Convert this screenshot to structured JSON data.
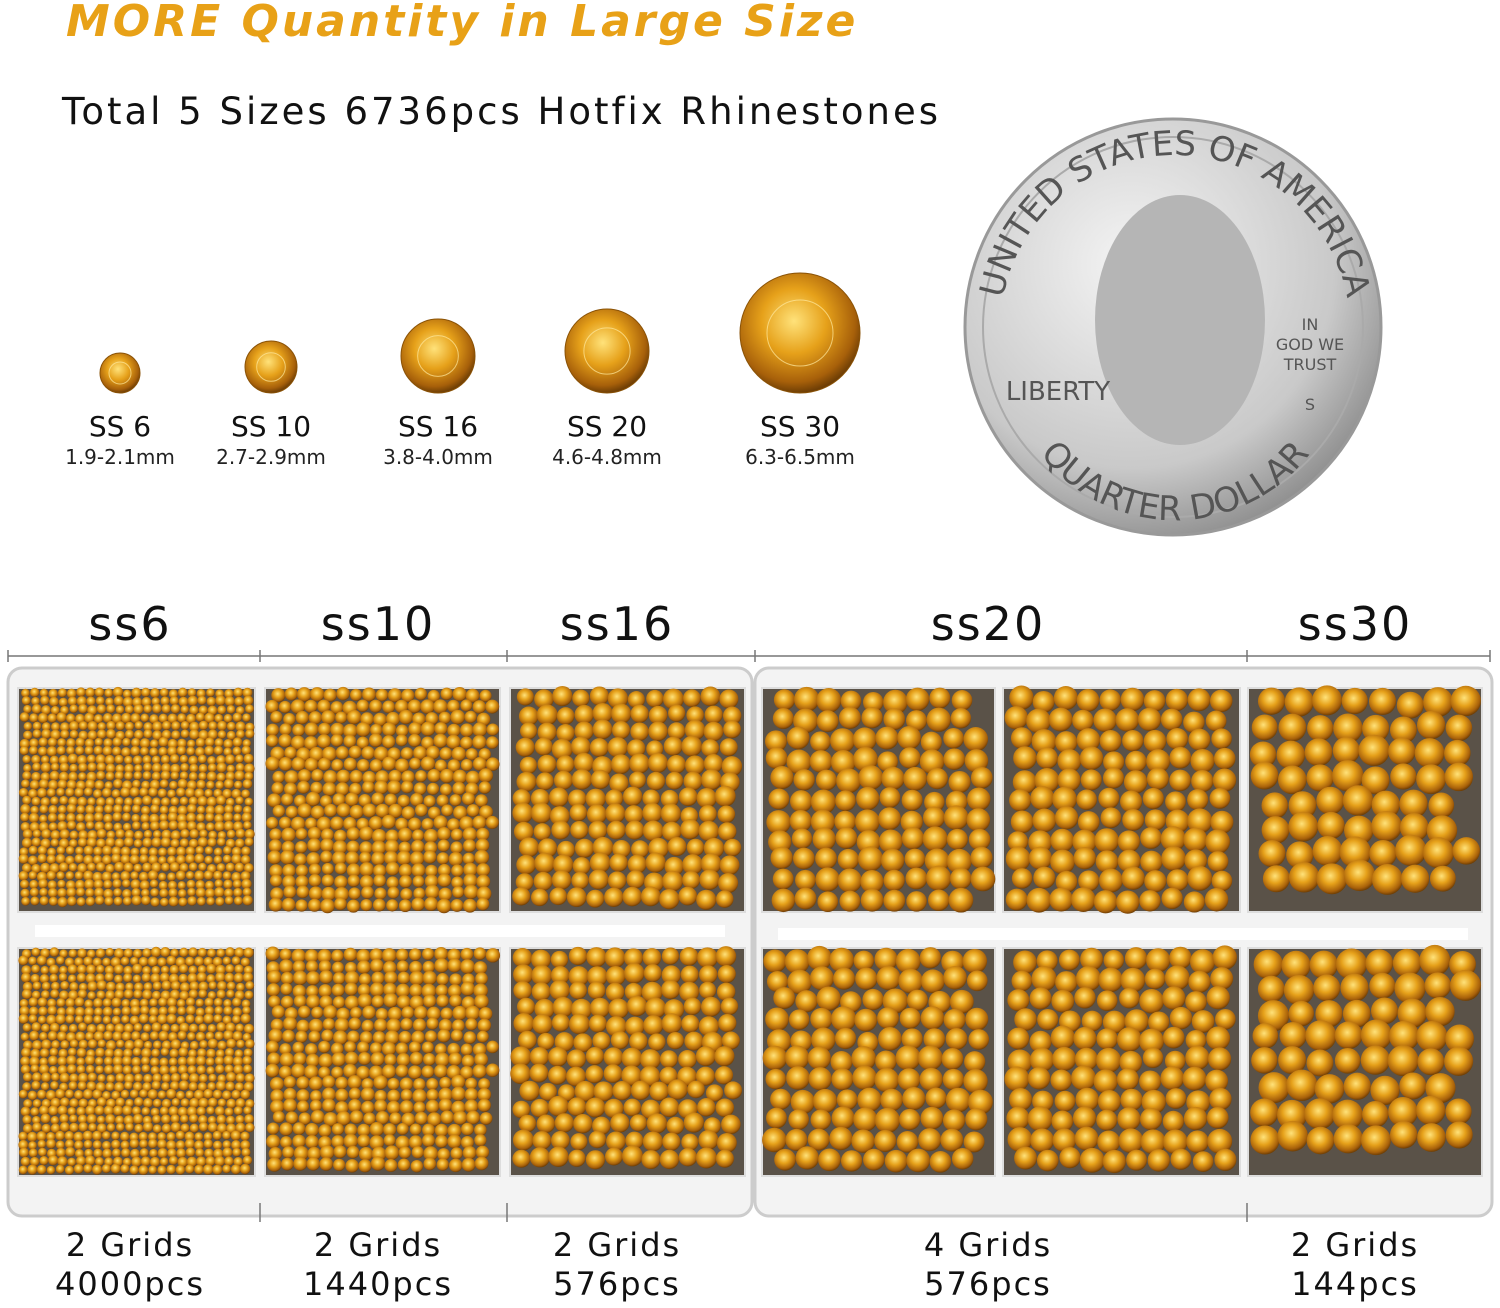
{
  "header": {
    "title": "MORE Quantity in Large Size",
    "subtitle": "Total 5 Sizes 6736pcs Hotfix Rhinestones"
  },
  "sizes": [
    {
      "label": "SS 6",
      "mm": "1.9-2.1mm"
    },
    {
      "label": "SS 10",
      "mm": "2.7-2.9mm"
    },
    {
      "label": "SS 16",
      "mm": "3.8-4.0mm"
    },
    {
      "label": "SS 20",
      "mm": "4.6-4.8mm"
    },
    {
      "label": "SS 30",
      "mm": "6.3-6.5mm"
    }
  ],
  "coin": {
    "top": "UNITED STATES OF AMERICA",
    "motto_1": "IN",
    "motto_2": "GOD WE",
    "motto_3": "TRUST",
    "left": "LIBERTY",
    "mint": "S",
    "bottom": "QUARTER DOLLAR"
  },
  "columns": [
    {
      "name": "ss6",
      "grids": "2 Grids",
      "pcs": "4000pcs"
    },
    {
      "name": "ss10",
      "grids": "2 Grids",
      "pcs": "1440pcs"
    },
    {
      "name": "ss16",
      "grids": "2 Grids",
      "pcs": "576pcs"
    },
    {
      "name": "ss20",
      "grids": "4 Grids",
      "pcs": "576pcs"
    },
    {
      "name": "ss30",
      "grids": "2 Grids",
      "pcs": "144pcs"
    }
  ]
}
